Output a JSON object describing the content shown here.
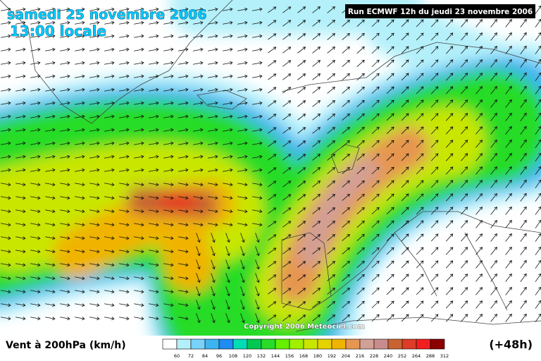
{
  "header": {
    "date": "samedi 25 novembre 2006",
    "time": "13:00 locale",
    "run": "Run ECMWF 12h du jeudi 23 novembre 2006"
  },
  "copyright": "Copyright 2006 Meteociel.com",
  "footer": {
    "variable": "Vent à 200hPa (km/h)",
    "lead": "(+48h)"
  },
  "legend": {
    "labels": [
      60,
      72,
      84,
      96,
      108,
      120,
      132,
      144,
      156,
      168,
      180,
      192,
      204,
      216,
      228,
      240,
      252,
      264,
      288,
      312
    ],
    "colors": [
      "#ffffff",
      "#b4f0fa",
      "#78d2fa",
      "#3cb4f0",
      "#1e8cf0",
      "#00dcb4",
      "#00c850",
      "#28dc28",
      "#64f000",
      "#a0f000",
      "#c8e600",
      "#e6d200",
      "#f0b400",
      "#e69650",
      "#d2a096",
      "#c88c8c",
      "#c86432",
      "#dc3c28",
      "#f01e1e",
      "#8c0000"
    ]
  }
}
